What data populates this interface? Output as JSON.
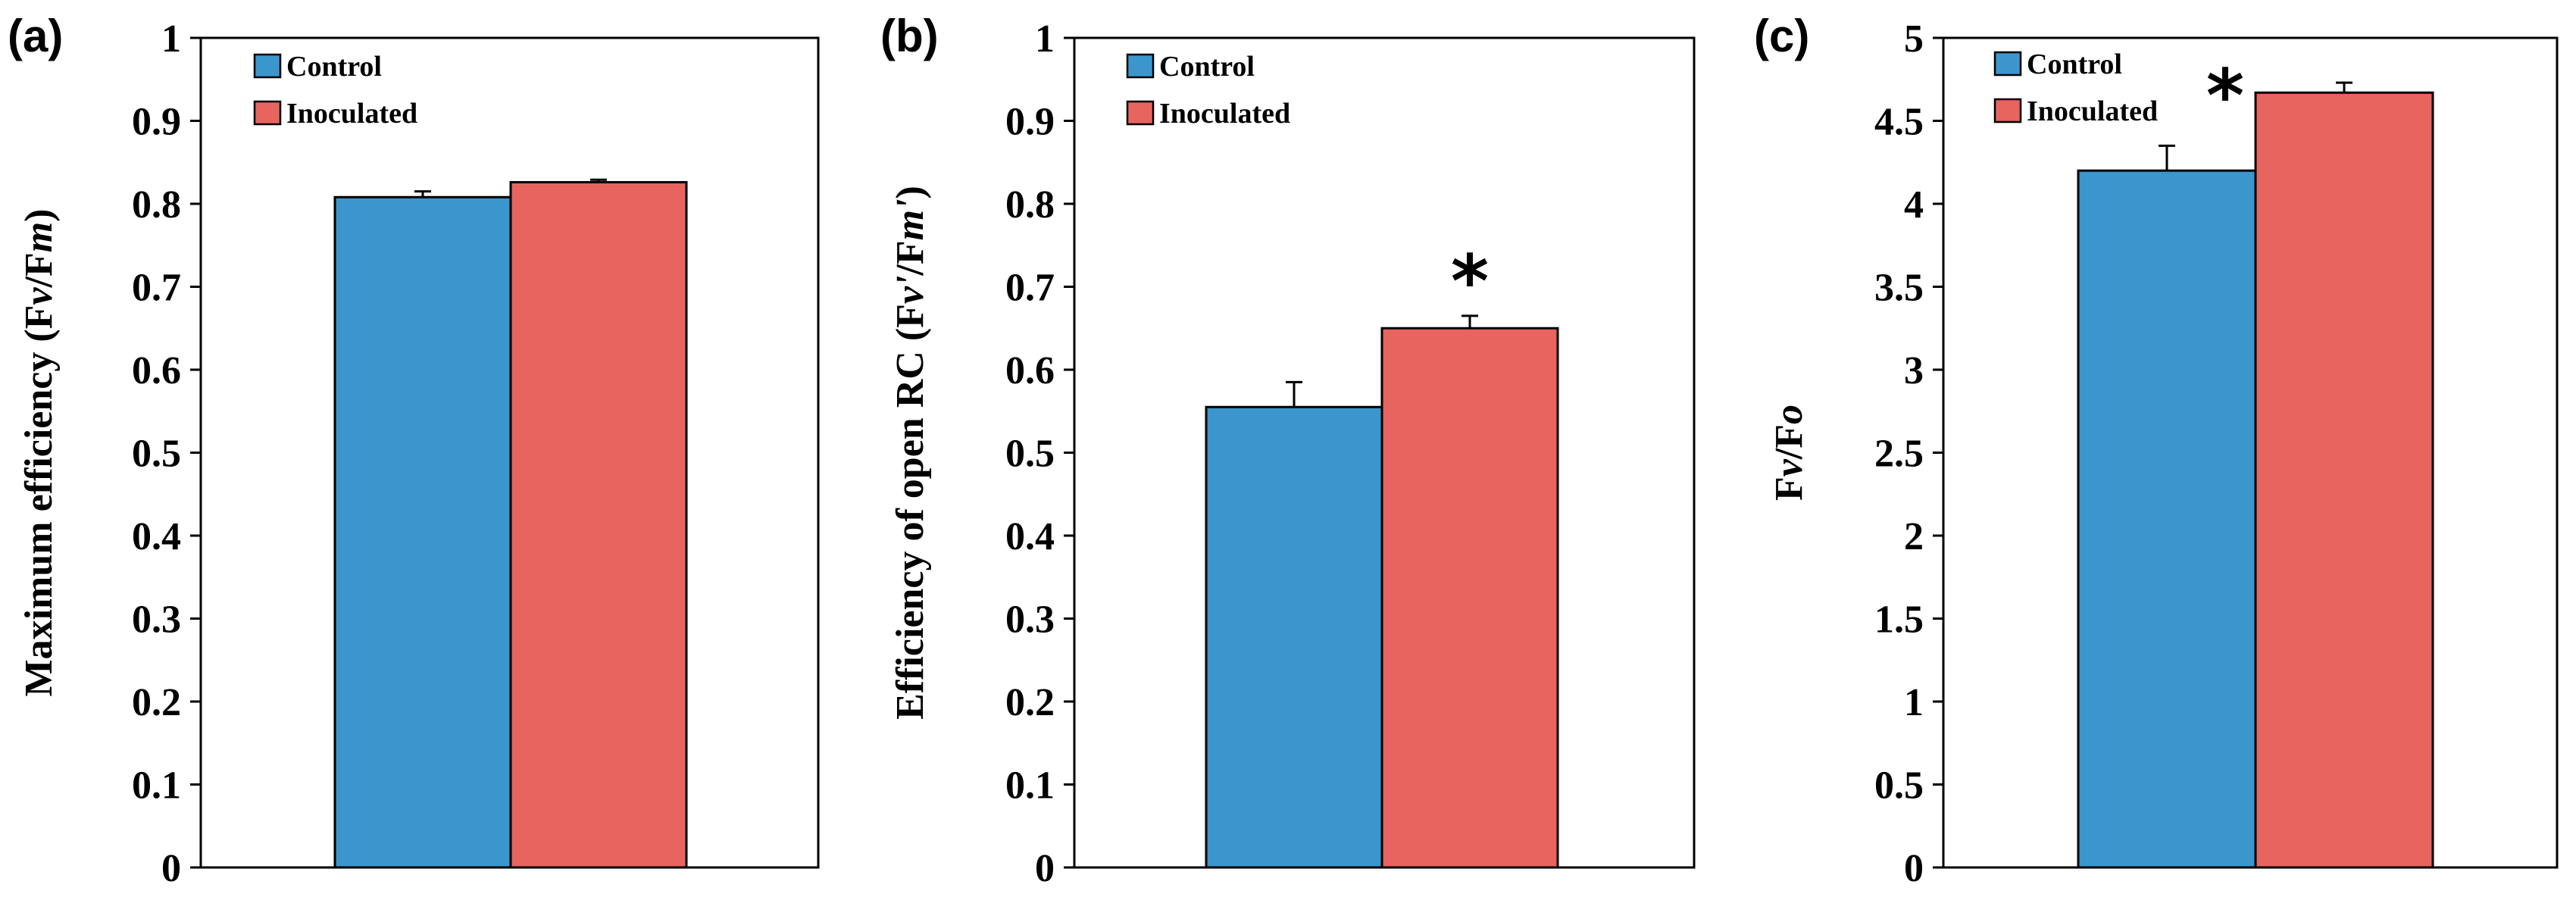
{
  "colors": {
    "control": "#3a96cd",
    "inoculated": "#e8645f",
    "frame": "#000000"
  },
  "chart_data": [
    {
      "type": "bar",
      "panel_label": "(a)",
      "ylabel_parts": [
        {
          "text": "Maximum efficiency (F",
          "italic": false
        },
        {
          "text": "v",
          "italic": true
        },
        {
          "text": "/F",
          "italic": false
        },
        {
          "text": "m",
          "italic": true
        },
        {
          "text": ")",
          "italic": false
        }
      ],
      "ylim": [
        0,
        1
      ],
      "yticks": [
        "0",
        "0.1",
        "0.2",
        "0.3",
        "0.4",
        "0.5",
        "0.6",
        "0.7",
        "0.8",
        "0.9",
        "1"
      ],
      "ytick_values": [
        0,
        0.1,
        0.2,
        0.3,
        0.4,
        0.5,
        0.6,
        0.7,
        0.8,
        0.9,
        1
      ],
      "series": [
        {
          "name": "Control",
          "value": 0.808,
          "error": 0.007
        },
        {
          "name": "Inoculated",
          "value": 0.826,
          "error": 0.003
        }
      ],
      "significance": null,
      "legend_position": "top-left"
    },
    {
      "type": "bar",
      "panel_label": "(b)",
      "ylabel_parts": [
        {
          "text": "Efficiency of open RC (F",
          "italic": false
        },
        {
          "text": "v'",
          "italic": true
        },
        {
          "text": "/F",
          "italic": false
        },
        {
          "text": "m'",
          "italic": true
        },
        {
          "text": ")",
          "italic": false
        }
      ],
      "ylim": [
        0,
        1
      ],
      "yticks": [
        "0",
        "0.1",
        "0.2",
        "0.3",
        "0.4",
        "0.5",
        "0.6",
        "0.7",
        "0.8",
        "0.9",
        "1"
      ],
      "ytick_values": [
        0,
        0.1,
        0.2,
        0.3,
        0.4,
        0.5,
        0.6,
        0.7,
        0.8,
        0.9,
        1
      ],
      "series": [
        {
          "name": "Control",
          "value": 0.555,
          "error": 0.03
        },
        {
          "name": "Inoculated",
          "value": 0.65,
          "error": 0.015
        }
      ],
      "significance": "*",
      "legend_position": "top-left"
    },
    {
      "type": "bar",
      "panel_label": "(c)",
      "ylabel_parts": [
        {
          "text": "F",
          "italic": false
        },
        {
          "text": "v",
          "italic": true
        },
        {
          "text": "/F",
          "italic": false
        },
        {
          "text": "o",
          "italic": true
        }
      ],
      "ylim": [
        0,
        5
      ],
      "yticks": [
        "0",
        "0.5",
        "1",
        "1.5",
        "2",
        "2.5",
        "3",
        "3.5",
        "4",
        "4.5",
        "5"
      ],
      "ytick_values": [
        0,
        0.5,
        1,
        1.5,
        2,
        2.5,
        3,
        3.5,
        4,
        4.5,
        5
      ],
      "series": [
        {
          "name": "Control",
          "value": 4.2,
          "error": 0.15
        },
        {
          "name": "Inoculated",
          "value": 4.67,
          "error": 0.06
        }
      ],
      "significance": "*",
      "legend_position": "top-left"
    }
  ]
}
